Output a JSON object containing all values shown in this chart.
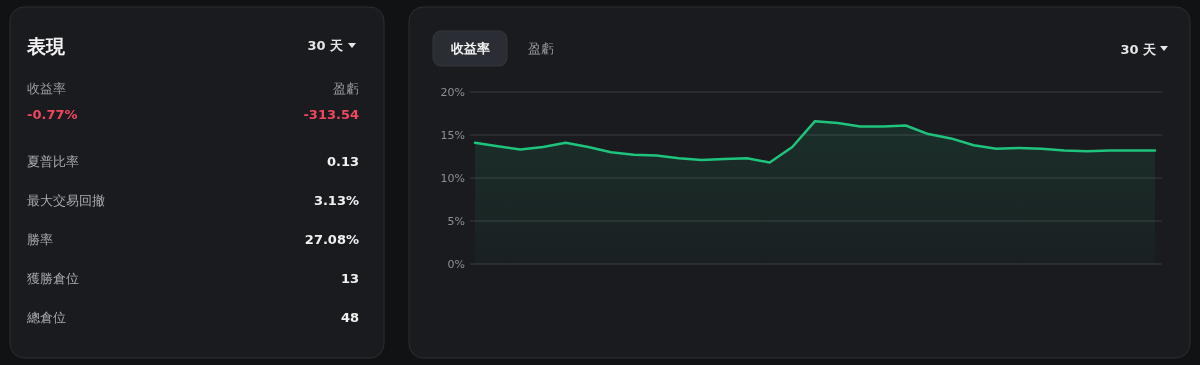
{
  "chart_data": [
    {
      "type": "other",
      "title": "表現",
      "annotations": [
        "30 天",
        "收益率",
        "盈虧",
        "-0.77%",
        "-313.54",
        "夏普比率",
        "0.13",
        "最大交易回撤",
        "3.13%",
        "勝率",
        "27.08%",
        "獲勝倉位",
        "13",
        "總倉位",
        "48"
      ]
    },
    {
      "type": "area",
      "annotations": [
        "收益率",
        "盈虧",
        "30 天"
      ],
      "categories": [
        null,
        null,
        null,
        null,
        null,
        null,
        null,
        null,
        null,
        null,
        null,
        null,
        null,
        null,
        null,
        null,
        null,
        null,
        null,
        null,
        null,
        null,
        null,
        null,
        null,
        null,
        null,
        null,
        null,
        null,
        null
      ],
      "series": [
        {
          "color": "#1fc47c",
          "values": [
            14.1,
            13.7,
            13.3,
            13.6,
            14.1,
            13.6,
            13.0,
            12.7,
            12.6,
            12.3,
            12.1,
            12.2,
            12.3,
            11.8,
            13.6,
            16.6,
            16.4,
            16.0,
            16.0,
            16.1,
            15.1,
            14.6,
            13.8,
            13.4,
            13.5,
            13.4,
            13.2,
            13.1,
            13.2,
            13.2,
            13.2
          ]
        }
      ],
      "ylim": [
        0,
        20
      ],
      "yticks": [
        {
          "value": 0,
          "label": "0%"
        },
        {
          "value": 5,
          "label": "5%"
        },
        {
          "value": 10,
          "label": "10%"
        },
        {
          "value": 15,
          "label": "15%"
        },
        {
          "value": 20,
          "label": "20%"
        }
      ],
      "grid": "y",
      "tick_labels": "y"
    }
  ]
}
